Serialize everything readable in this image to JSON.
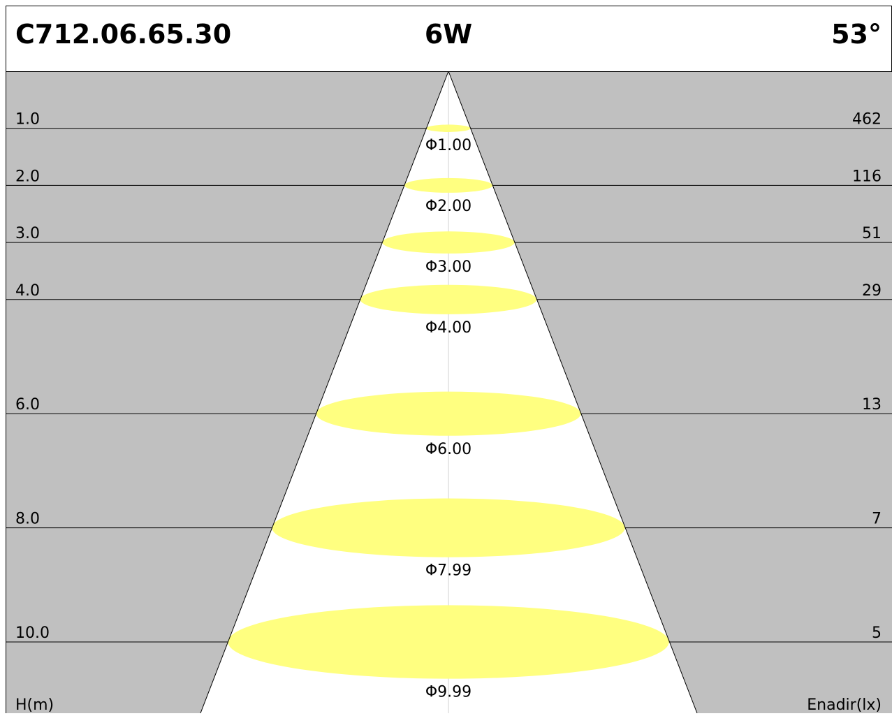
{
  "header": {
    "code": "C712.06.65.30",
    "power": "6W",
    "angle": "53°"
  },
  "rows": [
    {
      "height": "1.0",
      "lux": "462",
      "diameter": "Φ1.00"
    },
    {
      "height": "2.0",
      "lux": "116",
      "diameter": "Φ2.00"
    },
    {
      "height": "3.0",
      "lux": "51",
      "diameter": "Φ3.00"
    },
    {
      "height": "4.0",
      "lux": "29",
      "diameter": "Φ4.00"
    },
    {
      "height": "6.0",
      "lux": "13",
      "diameter": "Φ6.00"
    },
    {
      "height": "8.0",
      "lux": "7",
      "diameter": "Φ7.99"
    },
    {
      "height": "10.0",
      "lux": "5",
      "diameter": "Φ9.99"
    }
  ],
  "footer": {
    "left": "H(m)",
    "right": "Enadir(lx)"
  }
}
